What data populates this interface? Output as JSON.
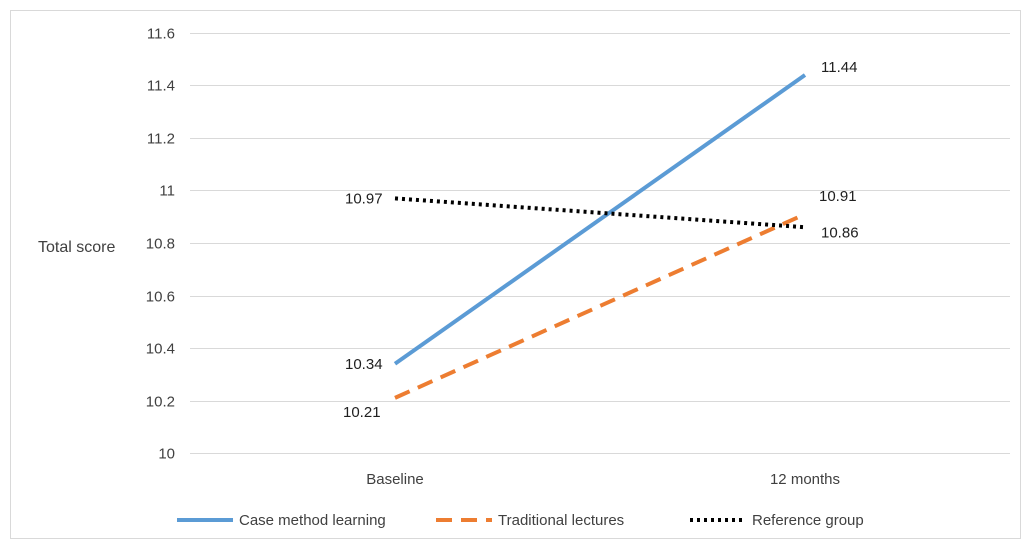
{
  "chart_data": {
    "type": "line",
    "title": "",
    "xlabel": "",
    "ylabel": "Total score",
    "categories": [
      "Baseline",
      "12 months"
    ],
    "ylim": [
      10,
      11.6
    ],
    "yticks": [
      "10",
      "10.2",
      "10.4",
      "10.6",
      "10.8",
      "11",
      "11.2",
      "11.4",
      "11.6"
    ],
    "grid": true,
    "legend_position": "bottom",
    "series": [
      {
        "name": "Case method learning",
        "values": [
          10.34,
          11.44
        ],
        "labels": [
          "10.34",
          "11.44"
        ],
        "color": "#5B9BD5",
        "style": "solid"
      },
      {
        "name": "Traditional lectures",
        "values": [
          10.21,
          10.91
        ],
        "labels": [
          "10.21",
          "10.91"
        ],
        "color": "#ED7D31",
        "style": "dashed"
      },
      {
        "name": "Reference group",
        "values": [
          10.97,
          10.86
        ],
        "labels": [
          "10.97",
          "10.86"
        ],
        "color": "#000000",
        "style": "dotted"
      }
    ]
  }
}
